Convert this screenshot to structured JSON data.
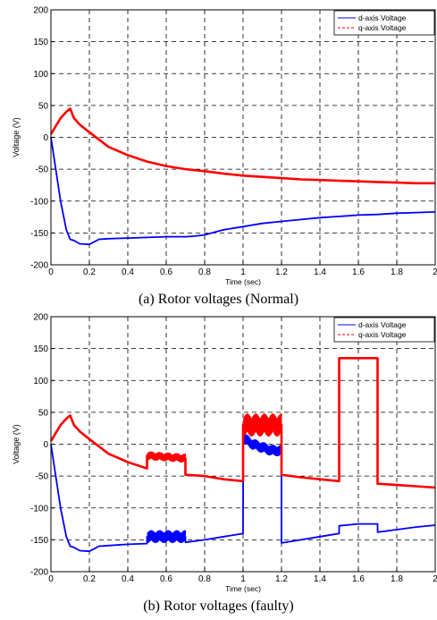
{
  "captions": [
    "(a) Rotor voltages (Normal)",
    "(b) Rotor voltages (faulty)"
  ],
  "chart_data": [
    {
      "type": "line",
      "title": "",
      "xlabel": "Time (sec)",
      "ylabel": "Voltage (V)",
      "xlim": [
        0,
        2
      ],
      "ylim": [
        -200,
        200
      ],
      "xticks": [
        0,
        0.2,
        0.4,
        0.6,
        0.8,
        1,
        1.2,
        1.4,
        1.6,
        1.8,
        2
      ],
      "yticks": [
        -200,
        -150,
        -100,
        -50,
        0,
        50,
        100,
        150,
        200
      ],
      "grid": true,
      "legend_position": "top-right",
      "series": [
        {
          "name": "d-axis Voltage",
          "color": "#0000ff",
          "style": "solid",
          "x": [
            0,
            0.02,
            0.05,
            0.08,
            0.1,
            0.12,
            0.15,
            0.2,
            0.25,
            0.3,
            0.4,
            0.5,
            0.6,
            0.7,
            0.75,
            0.8,
            0.9,
            1.0,
            1.1,
            1.2,
            1.3,
            1.4,
            1.5,
            1.6,
            1.7,
            1.8,
            1.9,
            2.0
          ],
          "y": [
            0,
            -40,
            -100,
            -145,
            -160,
            -162,
            -167,
            -168,
            -160,
            -159,
            -158,
            -157,
            -156,
            -156,
            -155,
            -153,
            -145,
            -140,
            -135,
            -132,
            -129,
            -126,
            -124,
            -122,
            -121,
            -119,
            -118,
            -117
          ]
        },
        {
          "name": "q-axis Voltage",
          "color": "#ff0000",
          "style": "dashed",
          "x": [
            0,
            0.02,
            0.05,
            0.08,
            0.1,
            0.12,
            0.15,
            0.2,
            0.3,
            0.4,
            0.5,
            0.6,
            0.7,
            0.8,
            0.9,
            1.0,
            1.1,
            1.2,
            1.3,
            1.4,
            1.5,
            1.6,
            1.7,
            1.8,
            1.9,
            2.0
          ],
          "y": [
            5,
            15,
            30,
            40,
            45,
            30,
            20,
            8,
            -15,
            -28,
            -38,
            -45,
            -50,
            -53,
            -57,
            -60,
            -62,
            -64,
            -66,
            -67,
            -68,
            -69,
            -70,
            -71,
            -72,
            -72
          ]
        }
      ]
    },
    {
      "type": "line",
      "title": "",
      "xlabel": "Time (sec)",
      "ylabel": "Voltage (V)",
      "xlim": [
        0,
        2
      ],
      "ylim": [
        -200,
        200
      ],
      "xticks": [
        0,
        0.2,
        0.4,
        0.6,
        0.8,
        1,
        1.2,
        1.4,
        1.6,
        1.8,
        2
      ],
      "yticks": [
        -200,
        -150,
        -100,
        -50,
        0,
        50,
        100,
        150,
        200
      ],
      "grid": true,
      "legend_position": "top-right",
      "series": [
        {
          "name": "d-axis Voltage",
          "color": "#0000ff",
          "style": "solid",
          "x": [
            0,
            0.02,
            0.05,
            0.08,
            0.1,
            0.12,
            0.15,
            0.2,
            0.25,
            0.3,
            0.4,
            0.5,
            0.5,
            0.6,
            0.7,
            0.7,
            0.8,
            0.9,
            1.0,
            1.0,
            1.05,
            1.1,
            1.15,
            1.2,
            1.2,
            1.3,
            1.4,
            1.5,
            1.5,
            1.6,
            1.7,
            1.7,
            1.8,
            1.9,
            2.0
          ],
          "y": [
            0,
            -40,
            -100,
            -145,
            -160,
            -162,
            -167,
            -168,
            -160,
            -159,
            -157,
            -156,
            -145,
            -145,
            -145,
            -154,
            -150,
            -145,
            -140,
            10,
            0,
            -5,
            -10,
            -10,
            -155,
            -150,
            -145,
            -140,
            -128,
            -125,
            -125,
            -138,
            -134,
            -130,
            -127
          ]
        },
        {
          "name": "q-axis Voltage",
          "color": "#ff0000",
          "style": "dashed",
          "x": [
            0,
            0.02,
            0.05,
            0.08,
            0.1,
            0.12,
            0.15,
            0.2,
            0.3,
            0.4,
            0.5,
            0.5,
            0.6,
            0.7,
            0.7,
            0.8,
            0.9,
            1.0,
            1.0,
            1.05,
            1.1,
            1.15,
            1.2,
            1.2,
            1.3,
            1.4,
            1.5,
            1.5,
            1.6,
            1.7,
            1.7,
            1.8,
            1.9,
            2.0
          ],
          "y": [
            5,
            15,
            30,
            40,
            45,
            30,
            20,
            8,
            -15,
            -28,
            -38,
            -18,
            -20,
            -22,
            -48,
            -50,
            -55,
            -58,
            30,
            30,
            30,
            30,
            30,
            -48,
            -52,
            -55,
            -58,
            135,
            135,
            135,
            -62,
            -64,
            -66,
            -68
          ]
        }
      ],
      "noise_bands": [
        {
          "series": 0,
          "x": [
            0.5,
            0.7
          ],
          "amplitude": 10
        },
        {
          "series": 0,
          "x": [
            1.0,
            1.2
          ],
          "amplitude": 9
        },
        {
          "series": 1,
          "x": [
            0.5,
            0.7
          ],
          "amplitude": 7
        },
        {
          "series": 1,
          "x": [
            1.0,
            1.2
          ],
          "amplitude": 18
        }
      ]
    }
  ]
}
